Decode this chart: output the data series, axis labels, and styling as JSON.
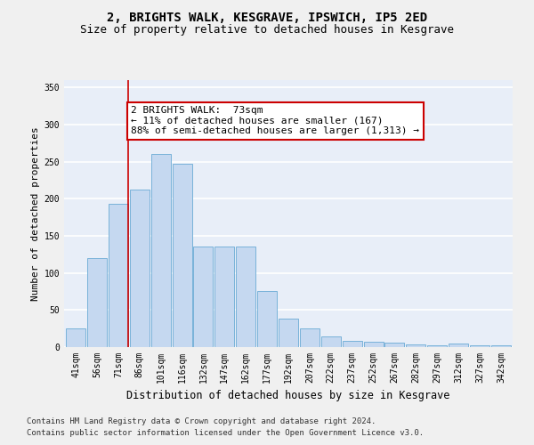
{
  "title": "2, BRIGHTS WALK, KESGRAVE, IPSWICH, IP5 2ED",
  "subtitle": "Size of property relative to detached houses in Kesgrave",
  "xlabel": "Distribution of detached houses by size in Kesgrave",
  "ylabel": "Number of detached properties",
  "categories": [
    "41sqm",
    "56sqm",
    "71sqm",
    "86sqm",
    "101sqm",
    "116sqm",
    "132sqm",
    "147sqm",
    "162sqm",
    "177sqm",
    "192sqm",
    "207sqm",
    "222sqm",
    "237sqm",
    "252sqm",
    "267sqm",
    "282sqm",
    "297sqm",
    "312sqm",
    "327sqm",
    "342sqm"
  ],
  "values": [
    25,
    120,
    193,
    213,
    260,
    247,
    136,
    136,
    136,
    76,
    39,
    25,
    15,
    8,
    7,
    6,
    4,
    3,
    5,
    3,
    3
  ],
  "bar_color": "#c5d8f0",
  "bar_edge_color": "#6aaad4",
  "annotation_text": "2 BRIGHTS WALK:  73sqm\n← 11% of detached houses are smaller (167)\n88% of semi-detached houses are larger (1,313) →",
  "annotation_box_color": "#ffffff",
  "annotation_box_edge": "#cc0000",
  "annotation_text_color": "#000000",
  "vline_color": "#cc0000",
  "ylim": [
    0,
    360
  ],
  "yticks": [
    0,
    50,
    100,
    150,
    200,
    250,
    300,
    350
  ],
  "bg_color": "#e8eef8",
  "grid_color": "#ffffff",
  "footer1": "Contains HM Land Registry data © Crown copyright and database right 2024.",
  "footer2": "Contains public sector information licensed under the Open Government Licence v3.0.",
  "title_fontsize": 10,
  "subtitle_fontsize": 9,
  "xlabel_fontsize": 8.5,
  "ylabel_fontsize": 8,
  "tick_fontsize": 7,
  "footer_fontsize": 6.5,
  "annotation_fontsize": 8
}
